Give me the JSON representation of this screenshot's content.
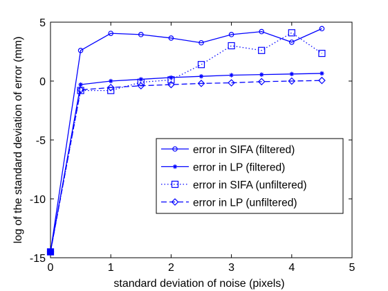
{
  "chart_data": {
    "type": "line",
    "xlabel": "standard deviation of noise (pixels)",
    "ylabel": "log of the standard deviation of error (mm)",
    "xlim": [
      0,
      5
    ],
    "ylim": [
      -15,
      5
    ],
    "xticks": [
      0,
      1,
      2,
      3,
      4,
      5
    ],
    "yticks": [
      -15,
      -10,
      -5,
      0,
      5
    ],
    "grid": false,
    "legend_position": "lower-right",
    "series_color": "#0000ff",
    "series": [
      {
        "name": "error in SIFA (filtered)",
        "line_style": "solid",
        "marker": "circle",
        "x": [
          0,
          0.5,
          1.0,
          1.5,
          2.0,
          2.5,
          3.0,
          3.5,
          4.0,
          4.5
        ],
        "y": [
          -14.5,
          2.6,
          4.05,
          3.95,
          3.65,
          3.25,
          3.95,
          4.2,
          3.3,
          4.45
        ]
      },
      {
        "name": "error in LP (filtered)",
        "line_style": "solid",
        "marker": "star",
        "x": [
          0,
          0.5,
          1.0,
          1.5,
          2.0,
          2.5,
          3.0,
          3.5,
          4.0,
          4.5
        ],
        "y": [
          -14.5,
          -0.3,
          0.0,
          0.15,
          0.3,
          0.4,
          0.5,
          0.55,
          0.6,
          0.65
        ]
      },
      {
        "name": "error in SIFA (unfiltered)",
        "line_style": "dotted",
        "marker": "square",
        "x": [
          0,
          0.5,
          1.0,
          1.5,
          2.0,
          2.5,
          3.0,
          3.5,
          4.0,
          4.5
        ],
        "y": [
          -14.5,
          -0.8,
          -0.8,
          -0.1,
          0.1,
          1.4,
          3.0,
          2.6,
          4.1,
          2.35
        ]
      },
      {
        "name": "error in LP (unfiltered)",
        "line_style": "dashed",
        "marker": "diamond",
        "x": [
          0,
          0.5,
          1.0,
          1.5,
          2.0,
          2.5,
          3.0,
          3.5,
          4.0,
          4.5
        ],
        "y": [
          -14.5,
          -0.75,
          -0.55,
          -0.4,
          -0.3,
          -0.2,
          -0.15,
          -0.05,
          0.0,
          0.05
        ]
      }
    ]
  }
}
